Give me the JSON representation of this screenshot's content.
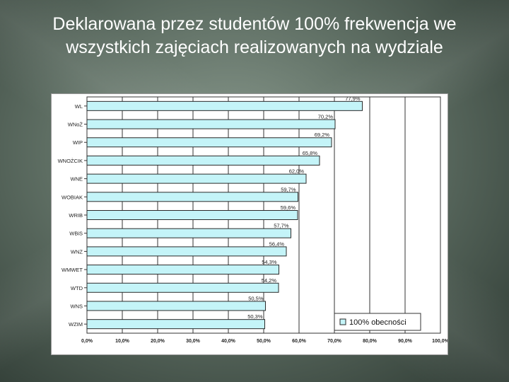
{
  "slide": {
    "title": "Deklarowana przez studentów 100% frekwencja we wszystkich zajęciach realizowanych na wydziale"
  },
  "colors": {
    "bar_fill": "#c4f4f8",
    "bar_stroke": "#2a2a2a",
    "gridline": "#333333"
  },
  "chart_data": {
    "type": "bar",
    "orientation": "horizontal",
    "title": "",
    "xlabel": "",
    "ylabel": "",
    "xlim": [
      0,
      100
    ],
    "grid": true,
    "legend_position": "bottom-right",
    "categories": [
      "WL",
      "WNoŻ",
      "WIP",
      "WNOŻCIK",
      "WNE",
      "WOBIAK",
      "WRIB",
      "WBiS",
      "WNZ",
      "WMWET",
      "WTD",
      "WNS",
      "WZIM"
    ],
    "series": [
      {
        "name": "100% obecności",
        "values": [
          77.9,
          70.2,
          69.2,
          65.8,
          62.0,
          59.7,
          59.6,
          57.7,
          56.4,
          54.3,
          54.2,
          50.5,
          50.3
        ],
        "labels": [
          "77,9%",
          "70,2%",
          "69,2%",
          "65,8%",
          "62,0%",
          "59,7%",
          "59,6%",
          "57,7%",
          "56,4%",
          "54,3%",
          "54,2%",
          "50,5%",
          "50,3%"
        ]
      }
    ],
    "ticks": [
      "0,0%",
      "10,0%",
      "20,0%",
      "30,0%",
      "40,0%",
      "50,0%",
      "60,0%",
      "70,0%",
      "80,0%",
      "90,0%",
      "100,0%"
    ],
    "tick_values": [
      0,
      10,
      20,
      30,
      40,
      50,
      60,
      70,
      80,
      90,
      100
    ]
  }
}
